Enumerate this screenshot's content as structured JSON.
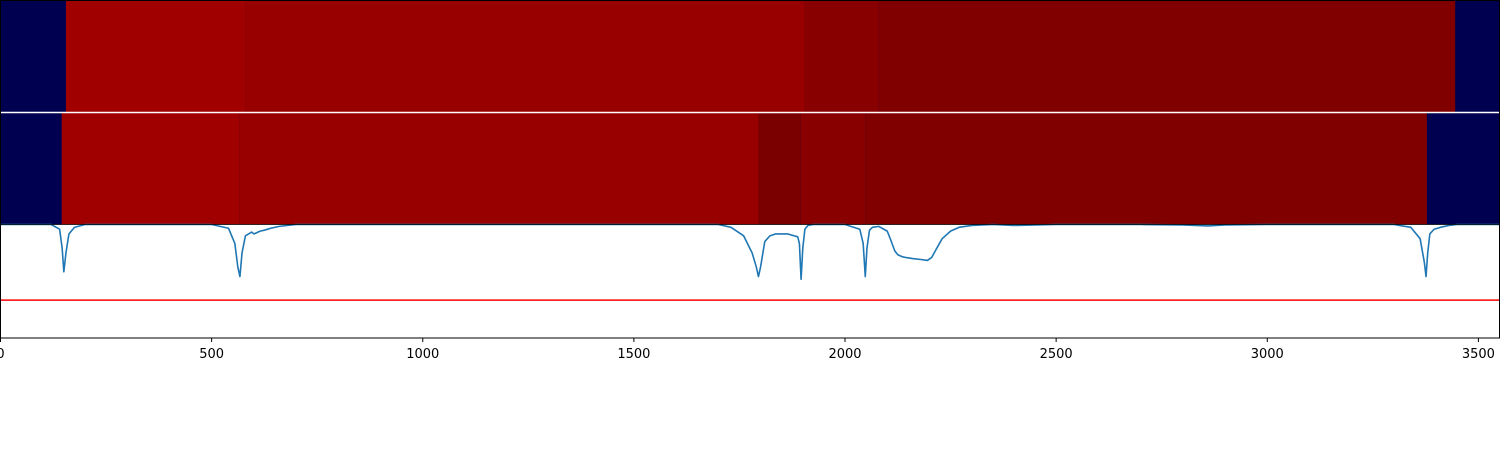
{
  "chart_data": {
    "type": "heatmap",
    "x_range": [
      0,
      3550
    ],
    "x_ticks": [
      0,
      500,
      1000,
      1500,
      2000,
      2500,
      3000,
      3500
    ],
    "x_tick_labels": [
      "0",
      "500",
      "1000",
      "1500",
      "2000",
      "2500",
      "3000",
      "3500"
    ],
    "grid": false,
    "background_color": "#000050",
    "heatmap_rows": [
      {
        "segments": [
          {
            "x_start": 155,
            "x_end": 580,
            "color": "#a00000"
          },
          {
            "x_start": 580,
            "x_end": 1905,
            "color": "#980000"
          },
          {
            "x_start": 1905,
            "x_end": 2080,
            "color": "#880000"
          },
          {
            "x_start": 2080,
            "x_end": 3445,
            "color": "#800000"
          }
        ]
      },
      {
        "segments": [
          {
            "x_start": 145,
            "x_end": 565,
            "color": "#a00000"
          },
          {
            "x_start": 565,
            "x_end": 1795,
            "color": "#980000"
          },
          {
            "x_start": 1795,
            "x_end": 1895,
            "color": "#7a0000"
          },
          {
            "x_start": 1895,
            "x_end": 2048,
            "color": "#880000"
          },
          {
            "x_start": 2048,
            "x_end": 3378,
            "color": "#800000"
          }
        ]
      }
    ],
    "spectrum": {
      "color": "#1f77b4",
      "x": [
        0,
        120,
        140,
        146,
        150,
        155,
        162,
        175,
        200,
        300,
        500,
        540,
        555,
        562,
        567,
        572,
        580,
        595,
        600,
        615,
        625,
        640,
        660,
        700,
        900,
        1200,
        1500,
        1700,
        1730,
        1760,
        1780,
        1790,
        1795,
        1800,
        1810,
        1822,
        1835,
        1850,
        1865,
        1880,
        1888,
        1892,
        1896,
        1900,
        1905,
        1912,
        1925,
        2000,
        2035,
        2043,
        2048,
        2052,
        2058,
        2065,
        2080,
        2100,
        2108,
        2118,
        2125,
        2135,
        2145,
        2160,
        2180,
        2195,
        2205,
        2215,
        2230,
        2250,
        2270,
        2300,
        2350,
        2400,
        2500,
        2600,
        2700,
        2800,
        2860,
        2900,
        3000,
        3100,
        3200,
        3300,
        3340,
        3362,
        3372,
        3376,
        3380,
        3385,
        3395,
        3410,
        3430,
        3450,
        3550
      ],
      "y": [
        0,
        0,
        -0.5,
        -2.5,
        -5,
        -3,
        -1,
        -0.3,
        0,
        0,
        0,
        -0.4,
        -2,
        -4.5,
        -5.5,
        -3,
        -1.2,
        -0.8,
        -1,
        -0.7,
        -0.6,
        -0.4,
        -0.2,
        0,
        0,
        0,
        0,
        0,
        -0.3,
        -1.2,
        -3,
        -4.5,
        -5.5,
        -4.5,
        -1.8,
        -1.2,
        -1,
        -1,
        -1,
        -1.2,
        -1.3,
        -2,
        -5.8,
        -2.5,
        -0.5,
        -0.1,
        0,
        0,
        -0.5,
        -2,
        -5.5,
        -2.5,
        -0.6,
        -0.3,
        -0.2,
        -0.7,
        -1.6,
        -2.8,
        -3.2,
        -3.4,
        -3.5,
        -3.6,
        -3.7,
        -3.8,
        -3.5,
        -2.7,
        -1.5,
        -0.7,
        -0.3,
        -0.1,
        0,
        -0.1,
        0,
        0,
        0,
        -0.05,
        -0.15,
        -0.05,
        0,
        0,
        0,
        0,
        -0.3,
        -1.5,
        -4,
        -5.5,
        -3,
        -1,
        -0.5,
        -0.3,
        -0.1,
        0,
        0
      ],
      "y_range": [
        -12,
        0
      ],
      "threshold": -8,
      "threshold_color": "#ff0000"
    }
  }
}
